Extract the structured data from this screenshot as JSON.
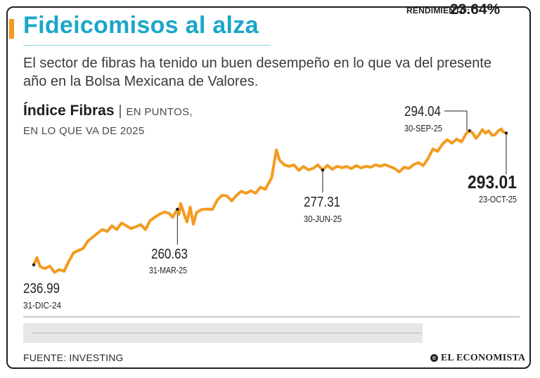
{
  "header": {
    "title": "Fideicomisos al alza",
    "subtitle": "El sector de fibras ha tenido un buen desempeño en lo que va del presente año en la Bolsa Mexicana de Valores."
  },
  "chart_heading": {
    "name": "Índice Fibras",
    "separator": "|",
    "unit": "EN PUNTOS,",
    "period": "EN LO QUE VA DE 2025"
  },
  "performance": {
    "label": "RENDIMIENTO:",
    "value": "23.64%"
  },
  "footer": {
    "source": "FUENTE: INVESTING",
    "brand_mark": "e",
    "brand": "EL ECONOMISTA"
  },
  "colors": {
    "title": "#1aa7c8",
    "accent": "#f39b1f",
    "line": "#f39b1f",
    "text": "#231f20"
  },
  "chart_data": {
    "type": "line",
    "title": "Índice Fibras",
    "x_range": [
      "2024-12-31",
      "2025-10-23"
    ],
    "series": [
      {
        "values": [
          [
            "2024-12-31",
            236.99
          ],
          [
            "2025-01-02",
            240.1
          ],
          [
            "2025-01-04",
            236.3
          ],
          [
            "2025-01-07",
            235.4
          ],
          [
            "2025-01-10",
            236.5
          ],
          [
            "2025-01-13",
            233.8
          ],
          [
            "2025-01-16",
            235.0
          ],
          [
            "2025-01-19",
            234.3
          ],
          [
            "2025-01-22",
            238.5
          ],
          [
            "2025-01-25",
            242.2
          ],
          [
            "2025-01-28",
            243.1
          ],
          [
            "2025-01-31",
            244.0
          ],
          [
            "2025-02-03",
            247.2
          ],
          [
            "2025-02-06",
            248.8
          ],
          [
            "2025-02-09",
            250.5
          ],
          [
            "2025-02-12",
            252.0
          ],
          [
            "2025-02-15",
            251.2
          ],
          [
            "2025-02-18",
            253.6
          ],
          [
            "2025-02-21",
            252.0
          ],
          [
            "2025-02-24",
            254.8
          ],
          [
            "2025-02-27",
            253.6
          ],
          [
            "2025-03-02",
            252.4
          ],
          [
            "2025-03-05",
            253.2
          ],
          [
            "2025-03-08",
            254.1
          ],
          [
            "2025-03-11",
            252.0
          ],
          [
            "2025-03-14",
            255.9
          ],
          [
            "2025-03-17",
            257.3
          ],
          [
            "2025-03-20",
            258.6
          ],
          [
            "2025-03-23",
            259.5
          ],
          [
            "2025-03-26",
            258.8
          ],
          [
            "2025-03-28",
            257.2
          ],
          [
            "2025-03-31",
            260.63
          ],
          [
            "2025-04-01",
            258.5
          ],
          [
            "2025-04-02",
            263.1
          ],
          [
            "2025-04-04",
            259.0
          ],
          [
            "2025-04-06",
            255.2
          ],
          [
            "2025-04-08",
            261.5
          ],
          [
            "2025-04-10",
            254.3
          ],
          [
            "2025-04-12",
            259.3
          ],
          [
            "2025-04-15",
            260.5
          ],
          [
            "2025-04-18",
            260.7
          ],
          [
            "2025-04-22",
            260.6
          ],
          [
            "2025-04-25",
            264.6
          ],
          [
            "2025-04-28",
            266.6
          ],
          [
            "2025-05-01",
            266.3
          ],
          [
            "2025-05-04",
            264.2
          ],
          [
            "2025-05-07",
            266.5
          ],
          [
            "2025-05-10",
            268.3
          ],
          [
            "2025-05-13",
            267.4
          ],
          [
            "2025-05-16",
            268.5
          ],
          [
            "2025-05-19",
            267.5
          ],
          [
            "2025-05-22",
            270.0
          ],
          [
            "2025-05-25",
            269.1
          ],
          [
            "2025-05-29",
            274.0
          ],
          [
            "2025-06-01",
            285.9
          ],
          [
            "2025-06-03",
            281.5
          ],
          [
            "2025-06-06",
            279.5
          ],
          [
            "2025-06-09",
            278.9
          ],
          [
            "2025-06-12",
            279.5
          ],
          [
            "2025-06-15",
            277.2
          ],
          [
            "2025-06-18",
            278.8
          ],
          [
            "2025-06-21",
            277.4
          ],
          [
            "2025-06-24",
            278.0
          ],
          [
            "2025-06-27",
            279.5
          ],
          [
            "2025-06-30",
            277.31
          ],
          [
            "2025-07-03",
            279.3
          ],
          [
            "2025-07-06",
            277.6
          ],
          [
            "2025-07-09",
            278.9
          ],
          [
            "2025-07-12",
            278.3
          ],
          [
            "2025-07-15",
            278.8
          ],
          [
            "2025-07-18",
            277.9
          ],
          [
            "2025-07-21",
            279.2
          ],
          [
            "2025-07-24",
            278.2
          ],
          [
            "2025-07-27",
            278.9
          ],
          [
            "2025-07-30",
            278.5
          ],
          [
            "2025-08-02",
            279.5
          ],
          [
            "2025-08-05",
            278.9
          ],
          [
            "2025-08-08",
            279.6
          ],
          [
            "2025-08-11",
            278.8
          ],
          [
            "2025-08-14",
            278.0
          ],
          [
            "2025-08-17",
            276.5
          ],
          [
            "2025-08-20",
            278.5
          ],
          [
            "2025-08-23",
            278.0
          ],
          [
            "2025-08-26",
            279.6
          ],
          [
            "2025-08-29",
            280.5
          ],
          [
            "2025-09-01",
            279.2
          ],
          [
            "2025-09-04",
            282.2
          ],
          [
            "2025-09-07",
            286.2
          ],
          [
            "2025-09-10",
            285.3
          ],
          [
            "2025-09-13",
            288.3
          ],
          [
            "2025-09-16",
            290.2
          ],
          [
            "2025-09-19",
            288.7
          ],
          [
            "2025-09-22",
            290.5
          ],
          [
            "2025-09-25",
            289.3
          ],
          [
            "2025-09-28",
            292.9
          ],
          [
            "2025-09-30",
            294.04
          ],
          [
            "2025-10-02",
            293.0
          ],
          [
            "2025-10-04",
            290.8
          ],
          [
            "2025-10-06",
            292.3
          ],
          [
            "2025-10-08",
            294.5
          ],
          [
            "2025-10-10",
            293.0
          ],
          [
            "2025-10-12",
            294.0
          ],
          [
            "2025-10-14",
            292.1
          ],
          [
            "2025-10-16",
            292.3
          ],
          [
            "2025-10-18",
            294.0
          ],
          [
            "2025-10-20",
            294.8
          ],
          [
            "2025-10-21",
            293.5
          ],
          [
            "2025-10-23",
            293.01
          ]
        ]
      }
    ],
    "annotations": [
      {
        "date": "2024-12-31",
        "value": 236.99,
        "value_label": "236.99",
        "date_label": "31-DIC-24",
        "highlight": false
      },
      {
        "date": "2025-03-31",
        "value": 260.63,
        "value_label": "260.63",
        "date_label": "31-MAR-25",
        "highlight": false
      },
      {
        "date": "2025-06-30",
        "value": 277.31,
        "value_label": "277.31",
        "date_label": "30-JUN-25",
        "highlight": false
      },
      {
        "date": "2025-09-30",
        "value": 294.04,
        "value_label": "294.04",
        "date_label": "30-SEP-25",
        "highlight": false
      },
      {
        "date": "2025-10-23",
        "value": 293.01,
        "value_label": "293.01",
        "date_label": "23-OCT-25",
        "highlight": true
      }
    ],
    "grid": false,
    "legend": "none"
  }
}
